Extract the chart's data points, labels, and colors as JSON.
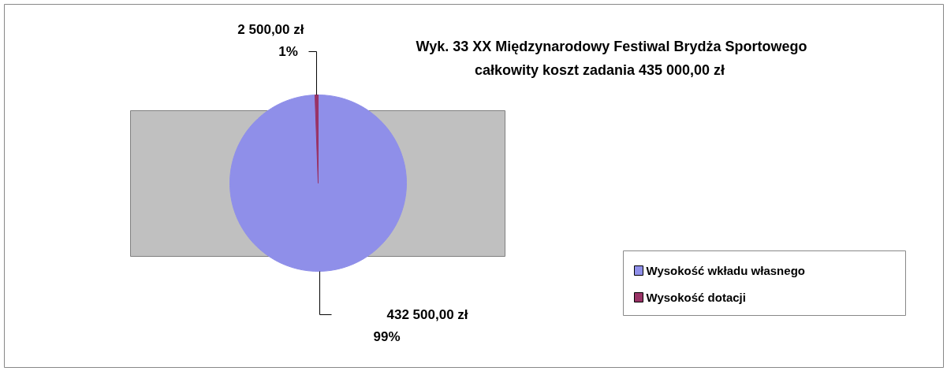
{
  "chart_data": {
    "type": "pie",
    "title": "Wyk. 33 XX Międzynarodowy Festiwal Brydża Sportowego\ncałkowity koszt zadania 435 000,00 zł",
    "categories": [
      "Wysokość wkładu własnego",
      "Wysokość dotacji"
    ],
    "values": [
      432500,
      2500
    ],
    "colors": [
      "#8f8fe9",
      "#993366"
    ],
    "value_labels": [
      "432 500,00 zł\n99%",
      "2 500,00 zł\n1%"
    ],
    "legend": "right"
  }
}
